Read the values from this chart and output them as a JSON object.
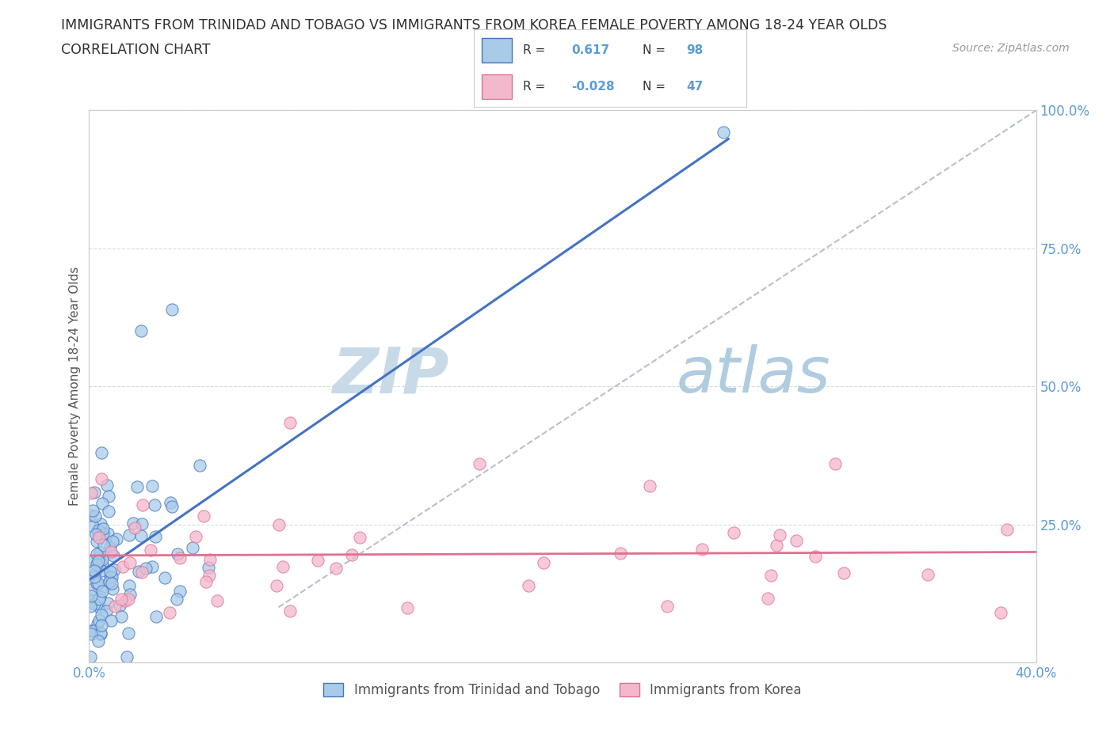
{
  "title_line1": "IMMIGRANTS FROM TRINIDAD AND TOBAGO VS IMMIGRANTS FROM KOREA FEMALE POVERTY AMONG 18-24 YEAR OLDS",
  "title_line2": "CORRELATION CHART",
  "source_text": "Source: ZipAtlas.com",
  "ylabel": "Female Poverty Among 18-24 Year Olds",
  "xlim": [
    0.0,
    0.4
  ],
  "ylim": [
    0.0,
    1.0
  ],
  "blue_color": "#a8cce8",
  "pink_color": "#f4b8cc",
  "blue_line_color": "#4472c4",
  "pink_line_color": "#e07090",
  "ref_line_color": "#b0b8c8",
  "watermark_color_zip": "#c8dae8",
  "watermark_color_atlas": "#b0cce0",
  "legend_label1": "Immigrants from Trinidad and Tobago",
  "legend_label2": "Immigrants from Korea",
  "background_color": "#ffffff",
  "grid_color": "#e8e8e8",
  "title_color": "#303030",
  "axis_color": "#5b9bd5",
  "ylabel_color": "#555555"
}
